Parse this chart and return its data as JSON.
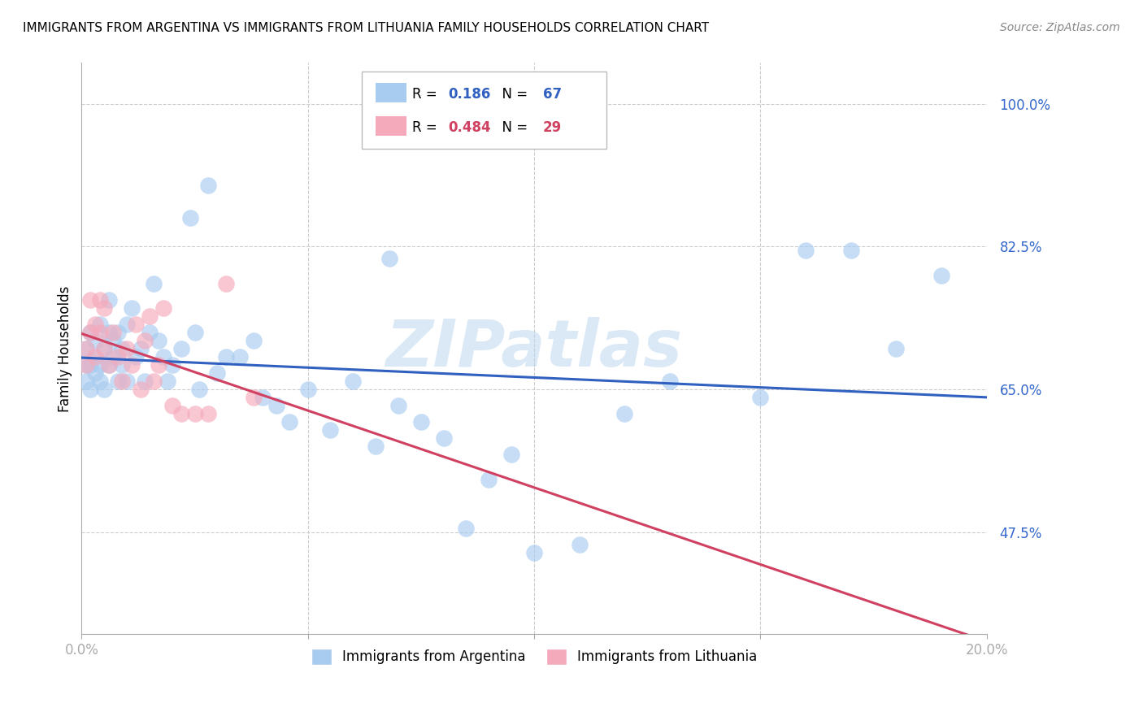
{
  "title": "IMMIGRANTS FROM ARGENTINA VS IMMIGRANTS FROM LITHUANIA FAMILY HOUSEHOLDS CORRELATION CHART",
  "source": "Source: ZipAtlas.com",
  "ylabel": "Family Households",
  "ytick_labels": [
    "100.0%",
    "82.5%",
    "65.0%",
    "47.5%"
  ],
  "ytick_values": [
    1.0,
    0.825,
    0.65,
    0.475
  ],
  "xlim": [
    0.0,
    0.2
  ],
  "ylim": [
    0.35,
    1.05
  ],
  "r_argentina": 0.186,
  "n_argentina": 67,
  "r_lithuania": 0.484,
  "n_lithuania": 29,
  "color_argentina": "#A8CCF0",
  "color_lithuania": "#F5AABB",
  "line_color_argentina": "#3060C0",
  "line_color_lithuania": "#D04060",
  "watermark_text": "ZIPatlas",
  "argentina_x": [
    0.001,
    0.001,
    0.001,
    0.002,
    0.002,
    0.002,
    0.003,
    0.003,
    0.003,
    0.004,
    0.004,
    0.004,
    0.005,
    0.005,
    0.006,
    0.006,
    0.006,
    0.007,
    0.007,
    0.008,
    0.008,
    0.009,
    0.009,
    0.01,
    0.01,
    0.011,
    0.012,
    0.013,
    0.014,
    0.015,
    0.016,
    0.017,
    0.018,
    0.019,
    0.02,
    0.022,
    0.024,
    0.025,
    0.026,
    0.028,
    0.03,
    0.032,
    0.035,
    0.038,
    0.04,
    0.043,
    0.046,
    0.05,
    0.055,
    0.06,
    0.065,
    0.07,
    0.075,
    0.08,
    0.085,
    0.09,
    0.095,
    0.1,
    0.11,
    0.12,
    0.13,
    0.15,
    0.16,
    0.17,
    0.18,
    0.19,
    0.068
  ],
  "argentina_y": [
    0.68,
    0.7,
    0.66,
    0.72,
    0.68,
    0.65,
    0.71,
    0.67,
    0.69,
    0.73,
    0.66,
    0.68,
    0.7,
    0.65,
    0.72,
    0.68,
    0.76,
    0.69,
    0.71,
    0.66,
    0.72,
    0.68,
    0.7,
    0.73,
    0.66,
    0.75,
    0.69,
    0.7,
    0.66,
    0.72,
    0.78,
    0.71,
    0.69,
    0.66,
    0.68,
    0.7,
    0.86,
    0.72,
    0.65,
    0.9,
    0.67,
    0.69,
    0.69,
    0.71,
    0.64,
    0.63,
    0.61,
    0.65,
    0.6,
    0.66,
    0.58,
    0.63,
    0.61,
    0.59,
    0.48,
    0.54,
    0.57,
    0.45,
    0.46,
    0.62,
    0.66,
    0.64,
    0.82,
    0.82,
    0.7,
    0.79,
    0.81
  ],
  "lithuania_x": [
    0.001,
    0.001,
    0.002,
    0.002,
    0.003,
    0.003,
    0.004,
    0.004,
    0.005,
    0.005,
    0.006,
    0.007,
    0.008,
    0.009,
    0.01,
    0.011,
    0.012,
    0.013,
    0.014,
    0.015,
    0.016,
    0.017,
    0.018,
    0.02,
    0.022,
    0.025,
    0.028,
    0.032,
    0.038
  ],
  "lithuania_y": [
    0.7,
    0.68,
    0.72,
    0.76,
    0.73,
    0.69,
    0.72,
    0.76,
    0.7,
    0.75,
    0.68,
    0.72,
    0.69,
    0.66,
    0.7,
    0.68,
    0.73,
    0.65,
    0.71,
    0.74,
    0.66,
    0.68,
    0.75,
    0.63,
    0.62,
    0.62,
    0.62,
    0.78,
    0.64
  ],
  "legend_r1_label": "R = ",
  "legend_r1_val": "0.186",
  "legend_n1_label": "N = ",
  "legend_n1_val": "67",
  "legend_r2_label": "R = ",
  "legend_r2_val": "0.484",
  "legend_n2_label": "N = ",
  "legend_n2_val": "29"
}
